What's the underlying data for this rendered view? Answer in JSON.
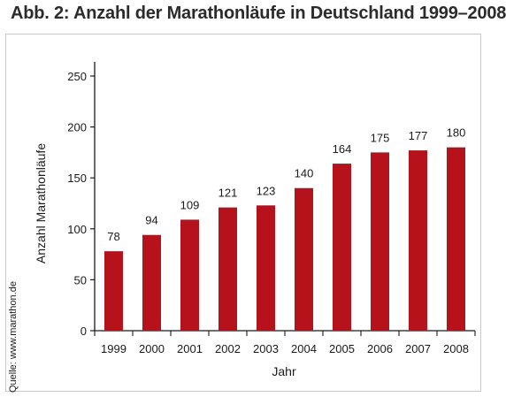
{
  "title": "Abb. 2: Anzahl der Marathonläufe in Deutschland 1999–2008",
  "source": "Quelle: www.marathon.de",
  "colors": {
    "bar": "#b5121b",
    "axis": "#1a1a1a",
    "frame": "#c9c9c9"
  },
  "chart_data": {
    "type": "bar",
    "title": "Abb. 2: Anzahl der Marathonläufe in Deutschland 1999–2008",
    "xlabel": "Jahr",
    "ylabel": "Anzahl Marathonläufe",
    "categories": [
      "1999",
      "2000",
      "2001",
      "2002",
      "2003",
      "2004",
      "2005",
      "2006",
      "2007",
      "2008"
    ],
    "values": [
      78,
      94,
      109,
      121,
      123,
      140,
      164,
      175,
      177,
      180
    ],
    "ylim": [
      0,
      250
    ],
    "yticks": [
      0,
      50,
      100,
      150,
      200,
      250
    ],
    "grid": false,
    "data_labels": true
  }
}
